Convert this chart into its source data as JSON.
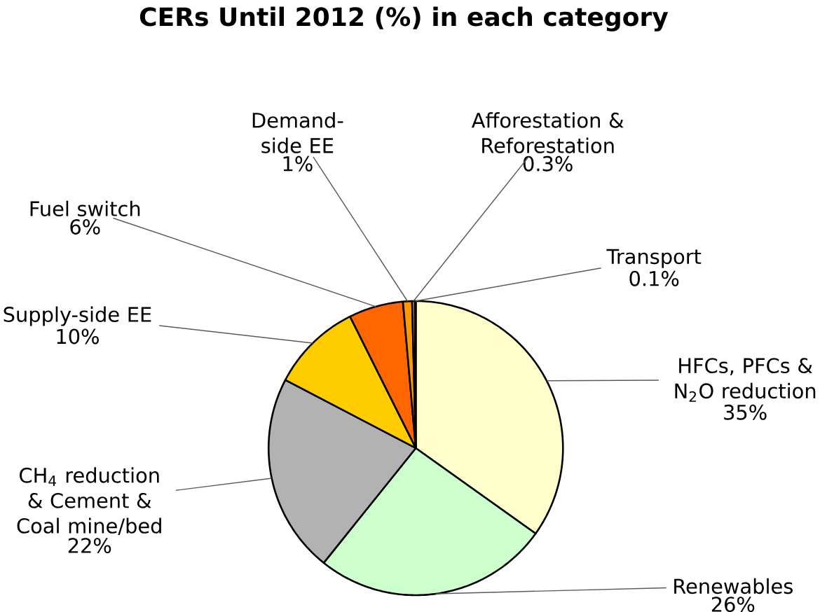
{
  "chart_data": {
    "type": "pie",
    "title": "CERs Until 2012 (%) in each category",
    "categories": [
      "HFCs, PFCs & N$_{2}$O reduction",
      "Renewables",
      "CH$_{4}$ reduction & Cement & Coal mine/bed",
      "Supply-side EE",
      "Fuel switch",
      "Demand-side EE",
      "Afforestation & Reforestation",
      "Transport"
    ],
    "values": [
      35,
      26,
      22,
      10,
      6,
      1,
      0.3,
      0.1
    ],
    "value_labels": [
      "35%",
      "26%",
      "22%",
      "10%",
      "6%",
      "1%",
      "0.3%",
      "0.1%"
    ],
    "colors": [
      "#ffffcc",
      "#ccffcc",
      "#b2b2b2",
      "#ffcc00",
      "#ff6600",
      "#ff9900",
      "#ffcc66",
      "#996633"
    ]
  }
}
